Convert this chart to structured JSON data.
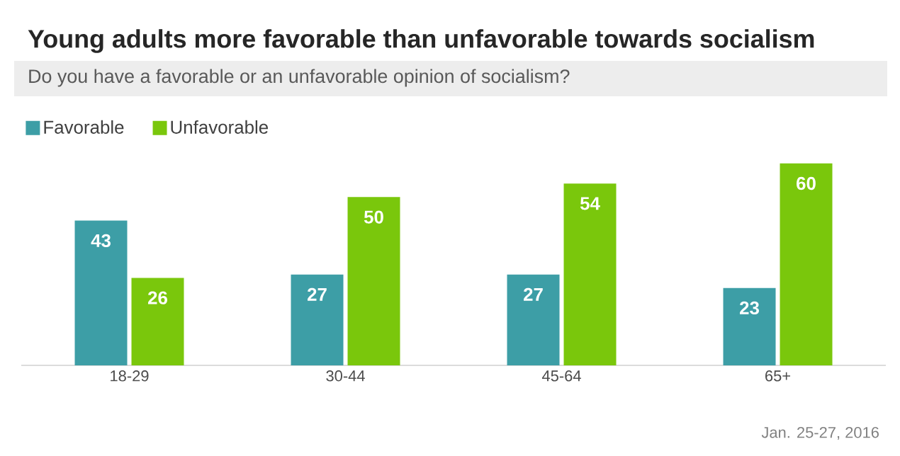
{
  "chart_data": {
    "type": "bar",
    "title": "Young adults more favorable than unfavorable towards socialism",
    "subtitle": "Do you have a favorable or an unfavorable opinion of socialism?",
    "categories": [
      "18-29",
      "30-44",
      "45-64",
      "65+"
    ],
    "series": [
      {
        "name": "Favorable",
        "color": "#3d9ea6",
        "values": [
          43,
          27,
          27,
          23
        ]
      },
      {
        "name": "Unfavorable",
        "color": "#7ac70c",
        "values": [
          26,
          50,
          54,
          60
        ]
      }
    ],
    "data_labels": true,
    "legend": "top left",
    "annotations": [
      "Jan. 25-27, 2016"
    ]
  }
}
